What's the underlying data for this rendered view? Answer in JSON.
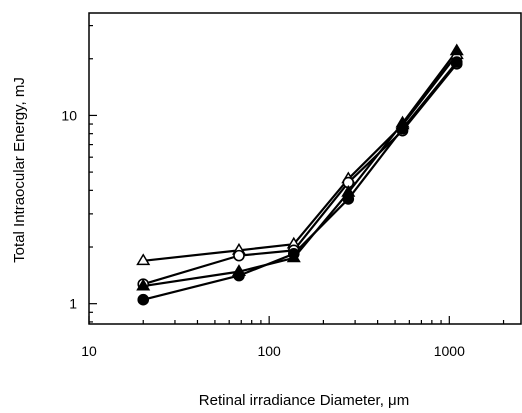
{
  "chart_data": {
    "type": "line",
    "title": "",
    "xlabel": "Retinal irradiance Diameter,   μm",
    "ylabel": "Total Intraocular Energy, mJ",
    "xscale": "log",
    "yscale": "log",
    "xlim": [
      10,
      2500
    ],
    "ylim": [
      0.78,
      35
    ],
    "grid": false,
    "legend": "none",
    "x_ticks": [
      10,
      100,
      1000
    ],
    "x_tick_labels": [
      "10",
      "100",
      "1000"
    ],
    "y_ticks": [
      1,
      10
    ],
    "y_tick_labels": [
      "1",
      "10"
    ],
    "series": [
      {
        "marker": "open-triangle",
        "x": [
          20,
          68,
          137,
          275,
          550,
          1100
        ],
        "y": [
          1.69,
          1.92,
          2.07,
          4.6,
          8.9,
          21.0
        ]
      },
      {
        "marker": "open-circle",
        "x": [
          20,
          68,
          137,
          275,
          550,
          1100
        ],
        "y": [
          1.27,
          1.8,
          1.92,
          4.4,
          8.3,
          18.8
        ]
      },
      {
        "marker": "filled-triangle",
        "x": [
          20,
          68,
          137,
          275,
          550,
          1100
        ],
        "y": [
          1.24,
          1.48,
          1.75,
          3.9,
          9.1,
          22.0
        ]
      },
      {
        "marker": "filled-circle",
        "x": [
          20,
          68,
          137,
          275,
          550,
          1100
        ],
        "y": [
          1.05,
          1.41,
          1.84,
          3.6,
          8.5,
          19.2
        ]
      }
    ]
  }
}
